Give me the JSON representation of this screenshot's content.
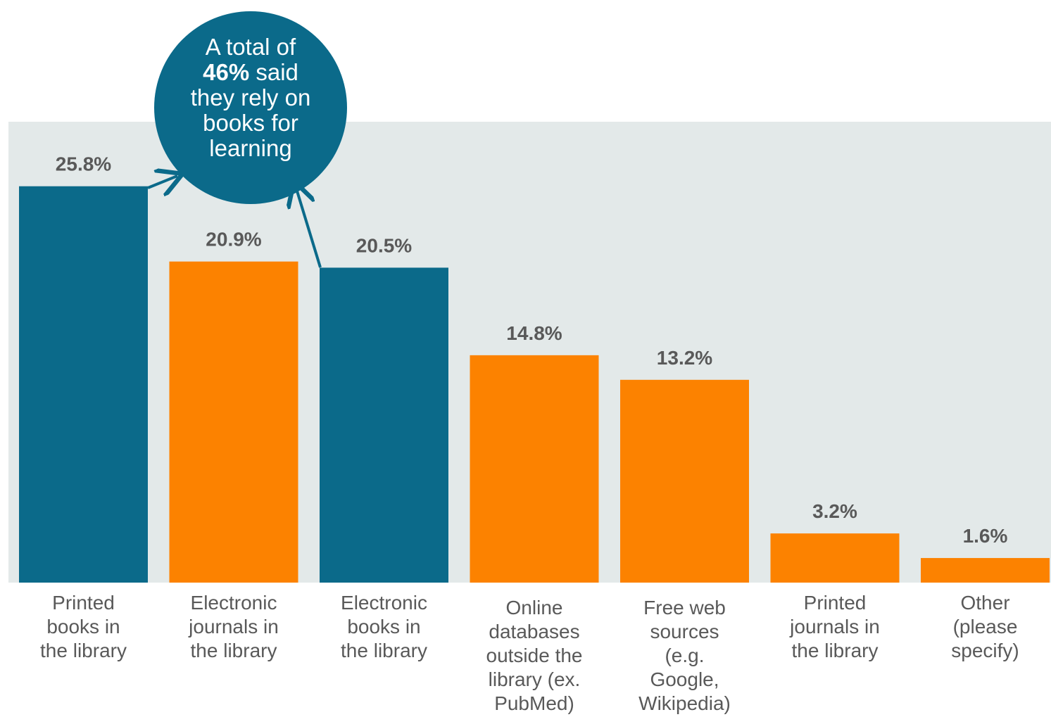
{
  "chart_data": {
    "type": "bar",
    "categories": [
      [
        "Printed",
        "books in",
        "the library"
      ],
      [
        "Electronic",
        "journals in",
        "the library"
      ],
      [
        "Electronic",
        "books in",
        "the library"
      ],
      [
        "Online",
        "databases",
        "outside the",
        "library (ex.",
        "PubMed)"
      ],
      [
        "Free web",
        "sources",
        "(e.g.",
        "Google,",
        "Wikipedia)"
      ],
      [
        "Printed",
        "journals in",
        "the library"
      ],
      [
        "Other",
        "(please",
        "specify)"
      ]
    ],
    "values": [
      25.8,
      20.9,
      20.5,
      14.8,
      13.2,
      3.2,
      1.6
    ],
    "value_labels": [
      "25.8%",
      "20.9%",
      "20.5%",
      "14.8%",
      "13.2%",
      "3.2%",
      "1.6%"
    ],
    "highlighted": [
      true,
      false,
      true,
      false,
      false,
      false,
      false
    ],
    "colors": {
      "highlight": "#0b6a8a",
      "default": "#fc8200",
      "plot_background": "#e3e9e9",
      "label_text": "#595959"
    },
    "callout": {
      "lines": [
        [
          {
            "text": "A total of",
            "bold": false
          }
        ],
        [
          {
            "text": "46%",
            "bold": true
          },
          {
            "text": " said",
            "bold": false
          }
        ],
        [
          {
            "text": "they rely on",
            "bold": false
          }
        ],
        [
          {
            "text": "books for",
            "bold": false
          }
        ],
        [
          {
            "text": "learning",
            "bold": false
          }
        ]
      ],
      "color": "#0b6a8a"
    },
    "ylim": [
      0,
      30
    ],
    "grid": false,
    "legend": "none"
  }
}
